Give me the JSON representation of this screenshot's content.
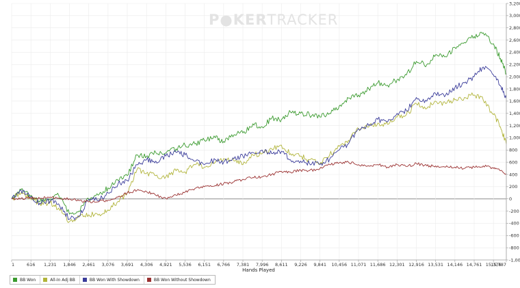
{
  "watermark": {
    "part1": "P",
    "part2": "KER",
    "part3": "TRACKER"
  },
  "chart_data": {
    "type": "line",
    "title": "",
    "xlabel": "Hands Played",
    "ylabel": "",
    "xlim": [
      1,
      15787
    ],
    "ylim": [
      -1000,
      3200
    ],
    "x_ticks": [
      "1",
      "616",
      "1,231",
      "1,846",
      "2,461",
      "3,076",
      "3,691",
      "4,306",
      "4,921",
      "5,536",
      "6,151",
      "6,766",
      "7,381",
      "7,996",
      "8,611",
      "9,226",
      "9,841",
      "10,456",
      "11,071",
      "11,686",
      "12,301",
      "12,916",
      "13,531",
      "14,146",
      "14,761",
      "15,376",
      "15,787"
    ],
    "x_tick_values": [
      1,
      616,
      1231,
      1846,
      2461,
      3076,
      3691,
      4306,
      4921,
      5536,
      6151,
      6766,
      7381,
      7996,
      8611,
      9226,
      9841,
      10456,
      11071,
      11686,
      12301,
      12916,
      13531,
      14146,
      14761,
      15376,
      15787
    ],
    "y_ticks": [
      "3,200",
      "3,000",
      "2,800",
      "2,600",
      "2,400",
      "2,200",
      "2,000",
      "1,800",
      "1,600",
      "1,400",
      "1,200",
      "1,000",
      "800",
      "600",
      "400",
      "200",
      "0",
      "-200",
      "-400",
      "-600",
      "-800",
      "-1,000"
    ],
    "y_tick_values": [
      3200,
      3000,
      2800,
      2600,
      2400,
      2200,
      2000,
      1800,
      1600,
      1400,
      1200,
      1000,
      800,
      600,
      400,
      200,
      0,
      -200,
      -400,
      -600,
      -800,
      -1000
    ],
    "grid": true,
    "legend_position": "bottom-left",
    "series": [
      {
        "name": "BB Won",
        "color": "#3a9a2e",
        "x": [
          1,
          300,
          600,
          900,
          1231,
          1500,
          1846,
          2150,
          2461,
          2800,
          3076,
          3400,
          3691,
          4000,
          4306,
          4600,
          4921,
          5250,
          5536,
          5850,
          6151,
          6500,
          6766,
          7100,
          7381,
          7700,
          7996,
          8300,
          8611,
          8900,
          9226,
          9500,
          9841,
          10150,
          10456,
          10750,
          11071,
          11400,
          11686,
          12000,
          12301,
          12600,
          12916,
          13250,
          13531,
          13850,
          14146,
          14450,
          14761,
          15050,
          15376,
          15600,
          15787
        ],
        "y": [
          0,
          150,
          50,
          -50,
          0,
          60,
          -250,
          -200,
          0,
          80,
          180,
          300,
          380,
          720,
          700,
          760,
          750,
          820,
          880,
          900,
          960,
          1000,
          940,
          1050,
          1080,
          1230,
          1180,
          1320,
          1300,
          1420,
          1400,
          1380,
          1340,
          1400,
          1520,
          1650,
          1700,
          1800,
          1900,
          1860,
          1950,
          2030,
          2250,
          2200,
          2360,
          2330,
          2480,
          2560,
          2660,
          2720,
          2540,
          2300,
          2050
        ]
      },
      {
        "name": "All-In Adj BB",
        "color": "#b1b43a",
        "x": [
          1,
          300,
          600,
          900,
          1231,
          1500,
          1846,
          2150,
          2461,
          2800,
          3076,
          3400,
          3691,
          4000,
          4306,
          4600,
          4921,
          5250,
          5536,
          5850,
          6151,
          6500,
          6766,
          7100,
          7381,
          7700,
          7996,
          8300,
          8611,
          8900,
          9226,
          9500,
          9841,
          10150,
          10456,
          10750,
          11071,
          11400,
          11686,
          12000,
          12301,
          12600,
          12916,
          13250,
          13531,
          13850,
          14146,
          14450,
          14761,
          15050,
          15376,
          15600,
          15787
        ],
        "y": [
          0,
          100,
          20,
          -80,
          -60,
          -150,
          -370,
          -300,
          -260,
          -250,
          -180,
          -40,
          100,
          480,
          420,
          380,
          360,
          460,
          440,
          560,
          520,
          600,
          660,
          620,
          560,
          720,
          740,
          820,
          880,
          740,
          700,
          640,
          580,
          720,
          860,
          960,
          1150,
          1180,
          1240,
          1220,
          1340,
          1380,
          1560,
          1480,
          1600,
          1560,
          1620,
          1660,
          1700,
          1620,
          1380,
          1180,
          900
        ]
      },
      {
        "name": "BB Won With Showdown",
        "color": "#3a3c9a",
        "x": [
          1,
          300,
          600,
          900,
          1231,
          1500,
          1846,
          2150,
          2461,
          2800,
          3076,
          3400,
          3691,
          4000,
          4306,
          4600,
          4921,
          5250,
          5536,
          5850,
          6151,
          6500,
          6766,
          7100,
          7381,
          7700,
          7996,
          8300,
          8611,
          8900,
          9226,
          9500,
          9841,
          10150,
          10456,
          10750,
          11071,
          11400,
          11686,
          12000,
          12301,
          12600,
          12916,
          13250,
          13531,
          13850,
          14146,
          14450,
          14761,
          15050,
          15376,
          15600,
          15787
        ],
        "y": [
          0,
          140,
          30,
          -70,
          -30,
          -80,
          -330,
          -280,
          -10,
          -20,
          100,
          250,
          300,
          560,
          640,
          620,
          700,
          760,
          720,
          620,
          560,
          640,
          600,
          660,
          700,
          760,
          800,
          740,
          780,
          640,
          620,
          580,
          560,
          650,
          800,
          900,
          1150,
          1200,
          1300,
          1260,
          1400,
          1440,
          1660,
          1600,
          1720,
          1700,
          1820,
          1900,
          2000,
          2160,
          2030,
          1850,
          1650
        ]
      },
      {
        "name": "BB Won Without Showdown",
        "color": "#9a3030",
        "x": [
          1,
          300,
          600,
          900,
          1231,
          1500,
          1846,
          2150,
          2461,
          2800,
          3076,
          3400,
          3691,
          4000,
          4306,
          4600,
          4921,
          5250,
          5536,
          5850,
          6151,
          6500,
          6766,
          7100,
          7381,
          7700,
          7996,
          8300,
          8611,
          8900,
          9226,
          9500,
          9841,
          10150,
          10456,
          10750,
          11071,
          11400,
          11686,
          12000,
          12301,
          12600,
          12916,
          13250,
          13531,
          13850,
          14146,
          14450,
          14761,
          15050,
          15376,
          15600,
          15787
        ],
        "y": [
          0,
          10,
          20,
          10,
          30,
          10,
          0,
          -30,
          -50,
          -40,
          -20,
          30,
          100,
          140,
          120,
          60,
          10,
          60,
          110,
          170,
          200,
          220,
          250,
          280,
          320,
          350,
          360,
          400,
          450,
          440,
          470,
          460,
          500,
          560,
          590,
          600,
          560,
          540,
          560,
          520,
          560,
          530,
          580,
          540,
          540,
          520,
          520,
          500,
          520,
          540,
          500,
          460,
          400
        ]
      }
    ]
  }
}
